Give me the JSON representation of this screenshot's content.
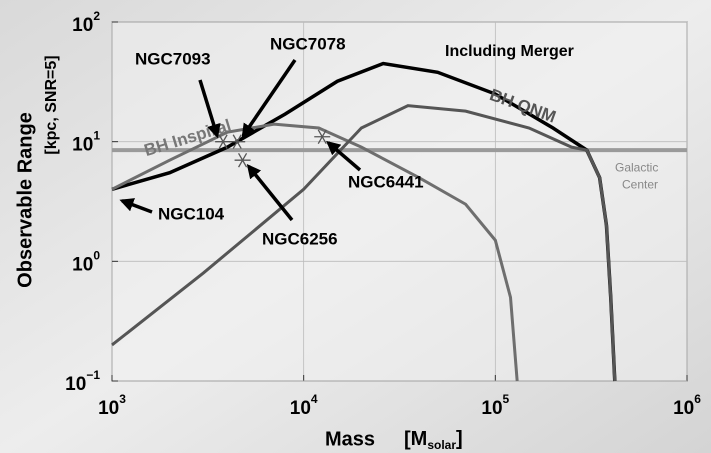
{
  "chart_data": {
    "type": "line",
    "xlabel": "Mass",
    "xlabel_unit": "M",
    "xlabel_sub": "solar",
    "ylabel": "Observable Range",
    "ylabel_sub": "[kpc, SNR=5]",
    "xlog": true,
    "ylog": true,
    "grid": true,
    "xlim": [
      1000,
      1000000
    ],
    "ylim": [
      0.1,
      100
    ],
    "xticks": [
      {
        "value": 1000,
        "label": "10",
        "exponent": "3"
      },
      {
        "value": 10000,
        "label": "10",
        "exponent": "4"
      },
      {
        "value": 100000,
        "label": "10",
        "exponent": "5"
      },
      {
        "value": 1000000,
        "label": "10",
        "exponent": "6"
      }
    ],
    "yticks": [
      {
        "value": 0.1,
        "label": "10",
        "exponent": "−1"
      },
      {
        "value": 1,
        "label": "10",
        "exponent": "0"
      },
      {
        "value": 10,
        "label": "10",
        "exponent": "1"
      },
      {
        "value": 100,
        "label": "10",
        "exponent": "2"
      }
    ],
    "series": [
      {
        "name": "Including Merger",
        "color": "#000000",
        "x": [
          1000,
          2000,
          4000,
          8000,
          15000,
          26000,
          50000,
          100000,
          200000,
          300000,
          350000,
          380000,
          400000,
          420000
        ],
        "values": [
          4,
          5.5,
          9,
          17,
          32,
          45,
          38,
          25,
          13,
          8.5,
          5,
          2,
          0.5,
          0.1
        ]
      },
      {
        "name": "BH Inspiral",
        "color": "#6e6e6e",
        "x": [
          1000,
          2000,
          4000,
          7000,
          12000,
          20000,
          40000,
          70000,
          100000,
          120000,
          130000
        ],
        "values": [
          4,
          7,
          12,
          14,
          13,
          9,
          5,
          3,
          1.5,
          0.5,
          0.1
        ]
      },
      {
        "name": "BH QNM",
        "color": "#555555",
        "x": [
          1000,
          3000,
          10000,
          20000,
          35000,
          70000,
          150000,
          250000,
          300000,
          350000,
          380000,
          400000,
          420000
        ],
        "values": [
          0.2,
          0.8,
          4,
          13,
          20,
          18,
          13,
          9,
          8.5,
          5,
          2,
          0.5,
          0.1
        ]
      }
    ],
    "reference_line": {
      "name": "Galactic",
      "name2": "Center",
      "value": 8.5,
      "color": "#9a9a9a"
    },
    "clusters": [
      {
        "label": "NGC7093",
        "x": 3800,
        "y": 10
      },
      {
        "label": "NGC7078",
        "x": 4500,
        "y": 10
      },
      {
        "label": "NGC6256",
        "x": 4800,
        "y": 7
      },
      {
        "label": "NGC6441",
        "x": 12500,
        "y": 11
      },
      {
        "label": "NGC104",
        "x": 1050,
        "y": 3.6
      }
    ]
  }
}
